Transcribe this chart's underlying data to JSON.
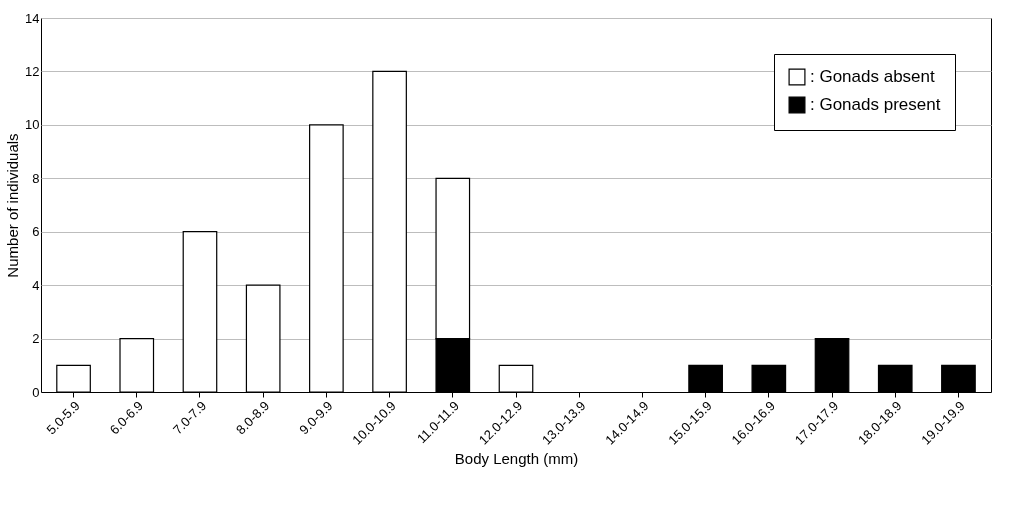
{
  "chart_data": {
    "type": "bar",
    "stacked": true,
    "xlabel": "Body Length (mm)",
    "ylabel": "Number of individuals",
    "categories": [
      "5.0-5.9",
      "6.0-6.9",
      "7.0-7.9",
      "8.0-8.9",
      "9.0-9.9",
      "10.0-10.9",
      "11.0-11.9",
      "12.0-12.9",
      "13.0-13.9",
      "14.0-14.9",
      "15.0-15.9",
      "16.0-16.9",
      "17.0-17.9",
      "18.0-18.9",
      "19.0-19.9"
    ],
    "series": [
      {
        "name": ": Gonads present",
        "color": "#000000",
        "values": [
          0,
          0,
          0,
          0,
          0,
          0,
          2,
          0,
          0,
          0,
          1,
          1,
          2,
          1,
          1
        ]
      },
      {
        "name": ": Gonads absent",
        "color": "#ffffff",
        "values": [
          1,
          2,
          6,
          4,
          10,
          12,
          6,
          1,
          0,
          0,
          0,
          0,
          0,
          0,
          0
        ]
      }
    ],
    "ylim": [
      0,
      14
    ],
    "yticks": [
      0,
      2,
      4,
      6,
      8,
      10,
      12,
      14
    ],
    "grid": "y",
    "legend": "top right"
  }
}
